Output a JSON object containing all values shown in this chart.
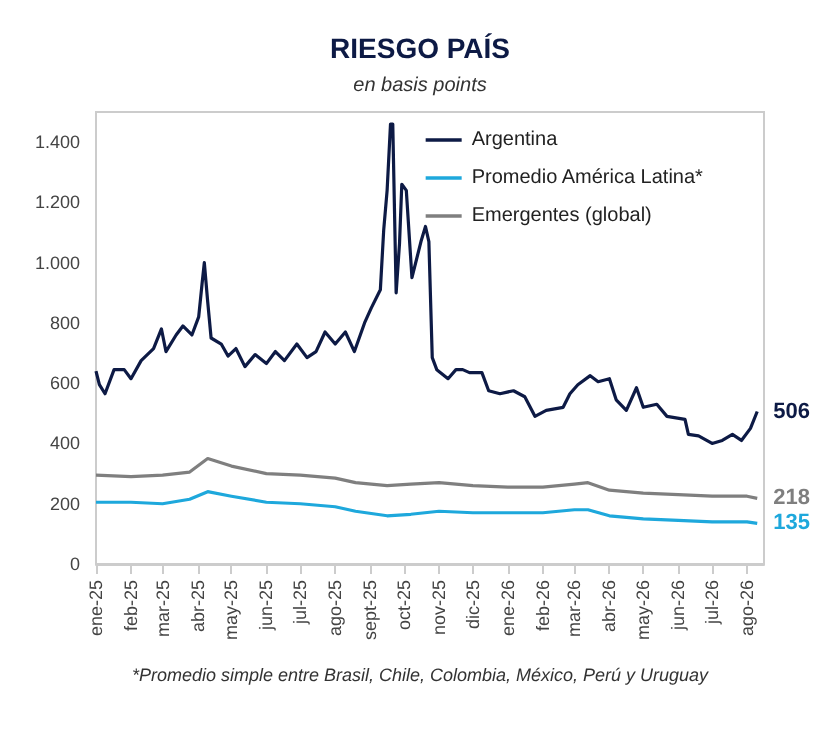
{
  "chart_data": {
    "type": "line",
    "title": "RIESGO PAÍS",
    "subtitle": "en basis points",
    "annotations": [
      "*Promedio simple entre Brasil, Chile, Colombia, México, Perú y Uruguay"
    ],
    "xlim": [
      "2025-01-01",
      "2026-08-16"
    ],
    "xticks": [
      {
        "value": "2025-01-01",
        "label": "ene-25"
      },
      {
        "value": "2025-02-01",
        "label": "feb-25"
      },
      {
        "value": "2025-03-01",
        "label": "mar-25"
      },
      {
        "value": "2025-04-01",
        "label": "abr-25"
      },
      {
        "value": "2025-05-01",
        "label": "may-25"
      },
      {
        "value": "2025-06-01",
        "label": "jun-25"
      },
      {
        "value": "2025-07-01",
        "label": "jul-25"
      },
      {
        "value": "2025-08-01",
        "label": "ago-25"
      },
      {
        "value": "2025-09-01",
        "label": "sept-25"
      },
      {
        "value": "2025-10-01",
        "label": "oct-25"
      },
      {
        "value": "2025-11-01",
        "label": "nov-25"
      },
      {
        "value": "2025-12-01",
        "label": "dic-25"
      },
      {
        "value": "2026-01-01",
        "label": "ene-26"
      },
      {
        "value": "2026-02-01",
        "label": "feb-26"
      },
      {
        "value": "2026-03-01",
        "label": "mar-26"
      },
      {
        "value": "2026-04-01",
        "label": "abr-26"
      },
      {
        "value": "2026-05-01",
        "label": "may-26"
      },
      {
        "value": "2026-06-01",
        "label": "jun-26"
      },
      {
        "value": "2026-07-01",
        "label": "jul-26"
      },
      {
        "value": "2026-08-01",
        "label": "ago-26"
      }
    ],
    "ylim": [
      0,
      1500
    ],
    "yticks": [
      0,
      200,
      400,
      600,
      800,
      {
        "value": 1000,
        "label": "1.000"
      },
      {
        "value": 1200,
        "label": "1.200"
      },
      {
        "value": 1400,
        "label": "1.400"
      }
    ],
    "grid": false,
    "legend": "top right",
    "series": [
      {
        "name": "Argentina",
        "color": "#0d1a45",
        "x": [
          "2025-01-01",
          "2025-01-04",
          "2025-01-09",
          "2025-01-17",
          "2025-01-26",
          "2025-02-01",
          "2025-02-10",
          "2025-02-21",
          "2025-02-28",
          "2025-03-04",
          "2025-03-13",
          "2025-03-19",
          "2025-03-27",
          "2025-04-02",
          "2025-04-05",
          "2025-04-07",
          "2025-04-10",
          "2025-04-13",
          "2025-04-22",
          "2025-04-28",
          "2025-05-05",
          "2025-05-13",
          "2025-05-22",
          "2025-06-01",
          "2025-06-09",
          "2025-06-17",
          "2025-06-28",
          "2025-07-07",
          "2025-07-15",
          "2025-07-23",
          "2025-08-01",
          "2025-08-10",
          "2025-08-18",
          "2025-08-27",
          "2025-09-02",
          "2025-09-10",
          "2025-09-13",
          "2025-09-16",
          "2025-09-19",
          "2025-09-21",
          "2025-09-24",
          "2025-09-27",
          "2025-09-29",
          "2025-10-03",
          "2025-10-08",
          "2025-10-16",
          "2025-10-20",
          "2025-10-23",
          "2025-10-26",
          "2025-10-30",
          "2025-11-09",
          "2025-11-16",
          "2025-11-22",
          "2025-11-28",
          "2025-12-09",
          "2025-12-15",
          "2025-12-25",
          "2026-01-06",
          "2026-01-16",
          "2026-01-25",
          "2026-02-04",
          "2026-02-19",
          "2026-02-25",
          "2026-03-04",
          "2026-03-15",
          "2026-03-22",
          "2026-04-01",
          "2026-04-07",
          "2026-04-16",
          "2026-04-25",
          "2026-05-01",
          "2026-05-13",
          "2026-05-22",
          "2026-06-07",
          "2026-06-10",
          "2026-06-19",
          "2026-07-01",
          "2026-07-10",
          "2026-07-19",
          "2026-07-27",
          "2026-08-04",
          "2026-08-10"
        ],
        "values": [
          640,
          595,
          565,
          645,
          645,
          615,
          675,
          715,
          780,
          705,
          760,
          790,
          760,
          820,
          930,
          1000,
          870,
          750,
          730,
          690,
          715,
          655,
          695,
          665,
          705,
          675,
          730,
          685,
          705,
          770,
          730,
          770,
          705,
          800,
          850,
          910,
          1110,
          1240,
          1460,
          1460,
          900,
          1065,
          1260,
          1240,
          950,
          1070,
          1120,
          1070,
          685,
          645,
          615,
          645,
          645,
          635,
          635,
          575,
          565,
          575,
          555,
          490,
          510,
          520,
          565,
          595,
          625,
          605,
          615,
          545,
          510,
          585,
          520,
          530,
          490,
          480,
          430,
          425,
          400,
          410,
          430,
          410,
          450,
          506
        ],
        "value_labels": [
          null,
          null,
          null,
          null,
          null,
          null,
          null,
          null,
          null,
          null,
          null,
          null,
          null,
          null,
          null,
          null,
          null,
          null,
          null,
          null,
          null,
          null,
          null,
          null,
          null,
          null,
          null,
          null,
          null,
          null,
          null,
          null,
          null,
          null,
          null,
          null,
          null,
          null,
          null,
          null,
          null,
          null,
          null,
          null,
          null,
          null,
          null,
          null,
          null,
          null,
          null,
          null,
          null,
          null,
          null,
          null,
          null,
          null,
          null,
          null,
          null,
          null,
          null,
          null,
          null,
          null,
          null,
          null,
          null,
          null,
          null,
          null,
          null,
          null,
          null,
          null,
          null,
          null,
          null,
          null,
          null,
          "506"
        ]
      },
      {
        "name": "Promedio América Latina*",
        "color": "#1ea8dc",
        "x": [
          "2025-01-01",
          "2025-02-01",
          "2025-03-01",
          "2025-03-25",
          "2025-04-10",
          "2025-05-01",
          "2025-06-01",
          "2025-07-01",
          "2025-08-01",
          "2025-08-19",
          "2025-09-16",
          "2025-10-07",
          "2025-11-01",
          "2025-12-01",
          "2026-01-01",
          "2026-02-01",
          "2026-03-01",
          "2026-03-13",
          "2026-04-01",
          "2026-05-01",
          "2026-06-01",
          "2026-07-01",
          "2026-08-01",
          "2026-08-10"
        ],
        "values": [
          205,
          205,
          200,
          215,
          240,
          225,
          205,
          200,
          190,
          175,
          160,
          165,
          175,
          170,
          170,
          170,
          180,
          180,
          160,
          150,
          145,
          140,
          140,
          135
        ],
        "value_labels": [
          null,
          null,
          null,
          null,
          null,
          null,
          null,
          null,
          null,
          null,
          null,
          null,
          null,
          null,
          null,
          null,
          null,
          null,
          null,
          null,
          null,
          null,
          null,
          "135"
        ]
      },
      {
        "name": "Emergentes (global)",
        "color": "#7f7f7f",
        "x": [
          "2025-01-01",
          "2025-02-01",
          "2025-03-01",
          "2025-03-25",
          "2025-04-10",
          "2025-05-01",
          "2025-06-01",
          "2025-07-01",
          "2025-08-01",
          "2025-08-19",
          "2025-09-16",
          "2025-10-07",
          "2025-11-01",
          "2025-12-01",
          "2026-01-01",
          "2026-02-01",
          "2026-03-01",
          "2026-03-13",
          "2026-04-01",
          "2026-05-01",
          "2026-06-01",
          "2026-07-01",
          "2026-08-01",
          "2026-08-10"
        ],
        "values": [
          295,
          290,
          295,
          305,
          350,
          325,
          300,
          295,
          285,
          270,
          260,
          265,
          270,
          260,
          255,
          255,
          265,
          270,
          245,
          235,
          230,
          225,
          225,
          218
        ],
        "value_labels": [
          null,
          null,
          null,
          null,
          null,
          null,
          null,
          null,
          null,
          null,
          null,
          null,
          null,
          null,
          null,
          null,
          null,
          null,
          null,
          null,
          null,
          null,
          null,
          "218"
        ]
      }
    ]
  }
}
